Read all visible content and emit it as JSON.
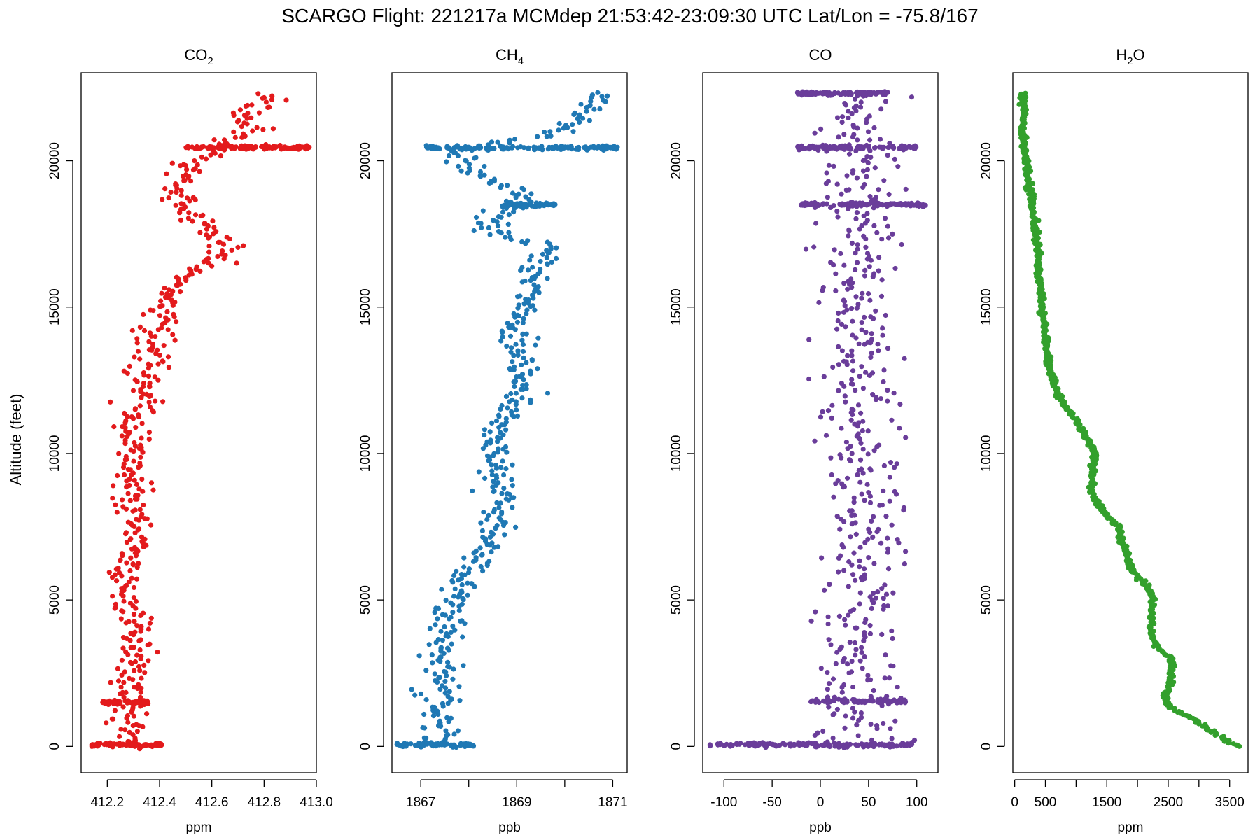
{
  "figure": {
    "title": "SCARGO Flight: 221217a  MCMdep  21:53:42-23:09:30 UTC  Lat/Lon = -75.8/167",
    "ylabel": "Altitude (feet)"
  },
  "chart_data": [
    {
      "type": "scatter",
      "title_main": "CO",
      "title_sub": "2",
      "xlabel": "ppm",
      "xlim": [
        412.1,
        413.0
      ],
      "xticks": [
        412.2,
        412.4,
        412.6,
        412.8,
        413.0
      ],
      "xtick_labels": [
        "412.2",
        "412.4",
        "412.6",
        "412.8",
        "413.0"
      ],
      "ylim": [
        -900,
        23000
      ],
      "yticks": [
        0,
        5000,
        10000,
        15000,
        20000
      ],
      "ytick_labels": [
        "0",
        "5000",
        "10000",
        "15000",
        "20000"
      ],
      "color": "#e31a1c",
      "profile": [
        [
          0,
          412.3
        ],
        [
          700,
          412.29
        ],
        [
          1500,
          412.27
        ],
        [
          2500,
          412.29
        ],
        [
          3500,
          412.31
        ],
        [
          4500,
          412.29
        ],
        [
          5000,
          412.27
        ],
        [
          5800,
          412.26
        ],
        [
          7000,
          412.32
        ],
        [
          8000,
          412.31
        ],
        [
          9000,
          412.29
        ],
        [
          10000,
          412.3
        ],
        [
          11000,
          412.3
        ],
        [
          12000,
          412.34
        ],
        [
          13000,
          412.36
        ],
        [
          14000,
          412.38
        ],
        [
          15000,
          412.41
        ],
        [
          15800,
          412.47
        ],
        [
          16500,
          412.58
        ],
        [
          17000,
          412.66
        ],
        [
          17500,
          412.59
        ],
        [
          18000,
          412.53
        ],
        [
          18600,
          412.46
        ],
        [
          19000,
          412.48
        ],
        [
          19600,
          412.46
        ],
        [
          20000,
          412.56
        ],
        [
          20400,
          412.63
        ],
        [
          20800,
          412.68
        ],
        [
          21100,
          412.77
        ],
        [
          21500,
          412.73
        ],
        [
          22000,
          412.79
        ],
        [
          22300,
          412.84
        ]
      ],
      "spread": 0.035,
      "bands": [
        {
          "alt": 60,
          "from": 412.14,
          "to": 412.41
        },
        {
          "alt": 1500,
          "from": 412.18,
          "to": 412.36
        },
        {
          "alt": 20450,
          "from": 412.5,
          "to": 412.98
        }
      ]
    },
    {
      "type": "scatter",
      "title_main": "CH",
      "title_sub": "4",
      "xlabel": "ppb",
      "xlim": [
        1866.4,
        1871.3
      ],
      "xticks": [
        1867,
        1868,
        1869,
        1870,
        1871
      ],
      "xtick_labels": [
        "1867",
        "",
        "1869",
        "",
        "1871"
      ],
      "ylim": [
        -900,
        23000
      ],
      "yticks": [
        0,
        5000,
        10000,
        15000,
        20000
      ],
      "ytick_labels": [
        "0",
        "5000",
        "10000",
        "15000",
        "20000"
      ],
      "color": "#1f78b4",
      "profile": [
        [
          0,
          1867.4
        ],
        [
          1000,
          1867.4
        ],
        [
          1600,
          1867.4
        ],
        [
          2500,
          1867.45
        ],
        [
          3500,
          1867.5
        ],
        [
          4500,
          1867.6
        ],
        [
          5500,
          1867.8
        ],
        [
          6500,
          1868.2
        ],
        [
          7500,
          1868.6
        ],
        [
          8500,
          1868.7
        ],
        [
          9500,
          1868.5
        ],
        [
          10500,
          1868.5
        ],
        [
          11500,
          1868.9
        ],
        [
          12500,
          1869.1
        ],
        [
          13500,
          1869.0
        ],
        [
          14500,
          1869.0
        ],
        [
          15500,
          1869.3
        ],
        [
          16500,
          1869.5
        ],
        [
          17000,
          1869.6
        ],
        [
          17700,
          1868.3
        ],
        [
          18200,
          1868.6
        ],
        [
          18600,
          1869.0
        ],
        [
          19000,
          1869.0
        ],
        [
          19500,
          1868.2
        ],
        [
          20000,
          1867.9
        ],
        [
          20400,
          1867.7
        ],
        [
          20900,
          1869.8
        ],
        [
          21400,
          1870.2
        ],
        [
          21900,
          1870.5
        ],
        [
          22300,
          1870.7
        ]
      ],
      "spread": 0.18,
      "bands": [
        {
          "alt": 60,
          "from": 1866.5,
          "to": 1868.1
        },
        {
          "alt": 20450,
          "from": 1867.1,
          "to": 1871.1
        },
        {
          "alt": 18500,
          "from": 1868.7,
          "to": 1869.8
        }
      ]
    },
    {
      "type": "scatter",
      "title_main": "CO",
      "title_sub": "",
      "xlabel": "ppb",
      "xlim": [
        -122,
        122
      ],
      "xticks": [
        -100,
        -50,
        0,
        50,
        100
      ],
      "xtick_labels": [
        "-100",
        "-50",
        "0",
        "50",
        "100"
      ],
      "ylim": [
        -900,
        23000
      ],
      "yticks": [
        0,
        5000,
        10000,
        15000,
        20000
      ],
      "ytick_labels": [
        "0",
        "5000",
        "10000",
        "15000",
        "20000"
      ],
      "color": "#6a3d9a",
      "profile": [
        [
          0,
          40
        ],
        [
          5000,
          42
        ],
        [
          10000,
          42
        ],
        [
          15000,
          40
        ],
        [
          20000,
          43
        ],
        [
          22300,
          40
        ]
      ],
      "spread": 22,
      "bands": [
        {
          "alt": 60,
          "from": -115,
          "to": 95
        },
        {
          "alt": 1550,
          "from": -10,
          "to": 90
        },
        {
          "alt": 18500,
          "from": -20,
          "to": 110
        },
        {
          "alt": 20450,
          "from": -25,
          "to": 100
        },
        {
          "alt": 22300,
          "from": -25,
          "to": 70
        }
      ]
    },
    {
      "type": "scatter",
      "title_main": "H",
      "title_sub": "2",
      "title_tail": "O",
      "xlabel": "ppm",
      "xlim": [
        -30,
        3800
      ],
      "xticks": [
        0,
        500,
        1000,
        1500,
        2000,
        2500,
        3000,
        3500
      ],
      "xtick_labels": [
        "0",
        "500",
        "",
        "1500",
        "",
        "2500",
        "",
        "3500"
      ],
      "ylim": [
        -900,
        23000
      ],
      "yticks": [
        0,
        5000,
        10000,
        15000,
        20000
      ],
      "ytick_labels": [
        "0",
        "5000",
        "10000",
        "15000",
        "20000"
      ],
      "color": "#33a02c",
      "profile": [
        [
          0,
          3650
        ],
        [
          150,
          3480
        ],
        [
          400,
          3300
        ],
        [
          900,
          2950
        ],
        [
          1200,
          2650
        ],
        [
          1500,
          2450
        ],
        [
          1700,
          2450
        ],
        [
          2300,
          2550
        ],
        [
          3000,
          2550
        ],
        [
          3400,
          2300
        ],
        [
          4000,
          2200
        ],
        [
          5000,
          2250
        ],
        [
          5500,
          2150
        ],
        [
          6000,
          1900
        ],
        [
          7000,
          1750
        ],
        [
          7500,
          1700
        ],
        [
          8000,
          1450
        ],
        [
          8700,
          1250
        ],
        [
          9000,
          1250
        ],
        [
          10000,
          1300
        ],
        [
          11000,
          1050
        ],
        [
          12000,
          700
        ],
        [
          13000,
          550
        ],
        [
          14000,
          500
        ],
        [
          15000,
          450
        ],
        [
          16000,
          400
        ],
        [
          17000,
          380
        ],
        [
          18000,
          320
        ],
        [
          18700,
          280
        ],
        [
          19200,
          220
        ],
        [
          20000,
          180
        ],
        [
          20500,
          150
        ],
        [
          21000,
          140
        ],
        [
          22000,
          130
        ],
        [
          22300,
          110
        ]
      ],
      "spread": 25,
      "bands": []
    }
  ]
}
